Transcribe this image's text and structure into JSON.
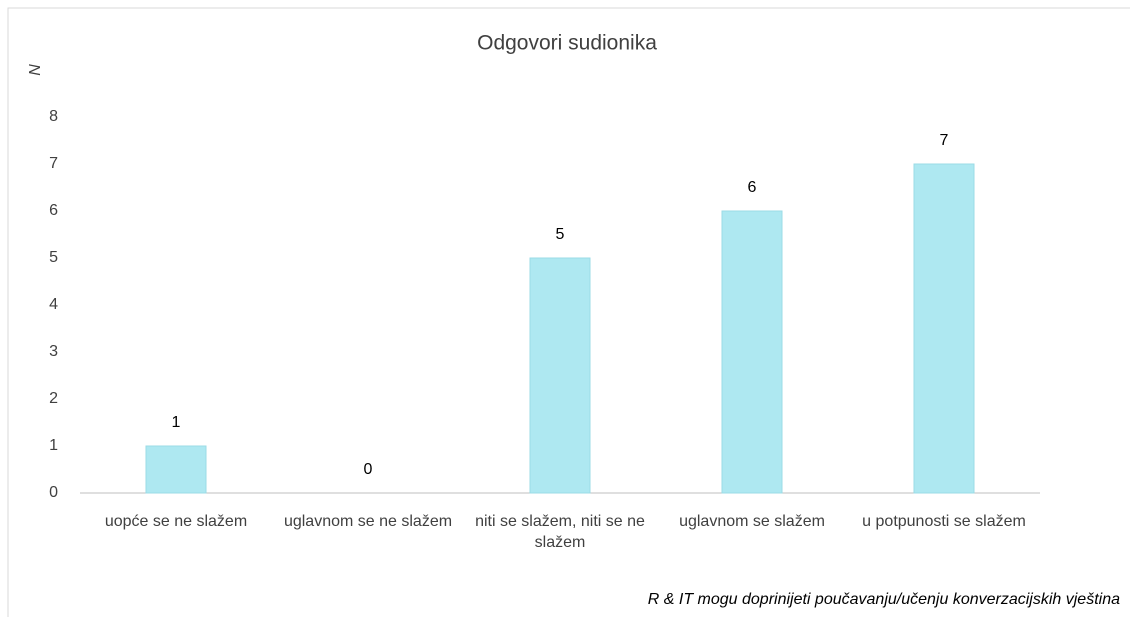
{
  "chart_data": {
    "type": "bar",
    "title": "Odgovori sudionika",
    "y_label": "N",
    "x_label": "R & IT mogu doprinijeti poučavanju/učenju konverzacijskih vještina",
    "categories": [
      "uopće se ne slažem",
      "uglavnom se ne slažem",
      "niti se slažem, niti se ne slažem",
      "uglavnom se slažem",
      "u potpunosti se slažem"
    ],
    "values": [
      1,
      0,
      5,
      6,
      7
    ],
    "color": "#aee8f1",
    "ylim": [
      0,
      8
    ],
    "yticks": [
      0,
      1,
      2,
      3,
      4,
      5,
      6,
      7,
      8
    ],
    "grid": false
  }
}
